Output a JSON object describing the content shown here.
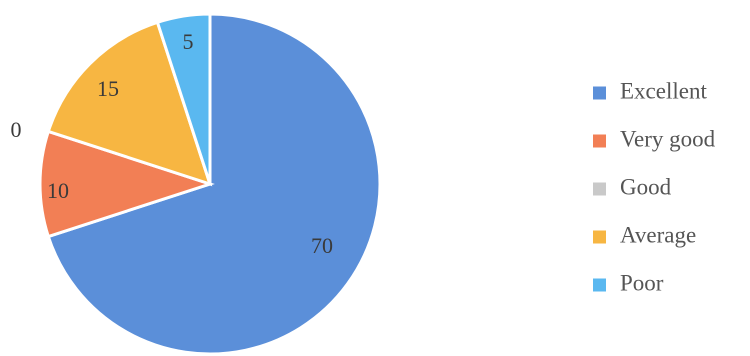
{
  "chart_data": {
    "type": "pie",
    "categories": [
      "Excellent",
      "Very good",
      "Good",
      "Average",
      "Poor"
    ],
    "values": [
      70,
      10,
      0,
      15,
      5
    ],
    "colors": [
      "#5b8fd9",
      "#f27f55",
      "#c9c9c9",
      "#f7b642",
      "#5ab8f0"
    ],
    "data_labels": [
      "70",
      "10",
      "0",
      "15",
      "5"
    ],
    "legend_position": "right",
    "start_angle_deg": 0,
    "direction": "clockwise"
  }
}
